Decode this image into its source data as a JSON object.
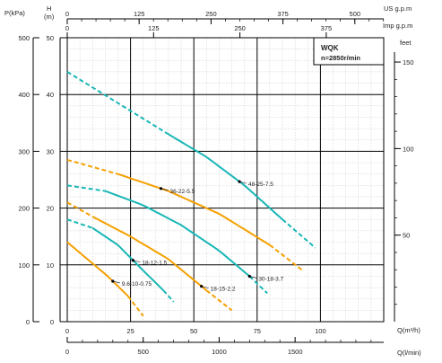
{
  "chart_data": {
    "type": "line",
    "title": "WQK",
    "subtitle": "n=2850r/min",
    "x_axis": {
      "label": "Q(m³/h)",
      "ticks": [
        0,
        25,
        50,
        75,
        100
      ],
      "range": [
        0,
        125
      ]
    },
    "x_axis_bottom": {
      "label": "Q(l/min)",
      "ticks": [
        "0",
        "500",
        "1000",
        "1500"
      ],
      "values_m3h": [
        0,
        30,
        60,
        90
      ]
    },
    "x_axis_top1": {
      "label": "US g.p.m",
      "ticks": [
        "0",
        "125",
        "250",
        "375",
        "500"
      ],
      "values_m3h": [
        0,
        28.4,
        56.8,
        85.2,
        113.6
      ]
    },
    "x_axis_top2": {
      "label": "Imp g.p.m",
      "ticks": [
        "0",
        "125",
        "250",
        "375"
      ],
      "values_m3h": [
        0,
        34.1,
        68.2,
        102.3
      ]
    },
    "y_axis_left_head": {
      "label": "H\n(m)",
      "ticks": [
        0,
        10,
        20,
        30,
        40,
        50
      ],
      "range": [
        0,
        50
      ]
    },
    "y_axis_left_pressure": {
      "label": "P(kPa)",
      "ticks": [
        "0",
        "100",
        "200",
        "300",
        "400",
        "500"
      ]
    },
    "y_axis_right": {
      "label": "feet",
      "ticks": [
        "50",
        "100",
        "150"
      ],
      "values_m": [
        15.24,
        30.48,
        45.72
      ]
    },
    "grid": true,
    "series": [
      {
        "name": "48-25-7.5",
        "color": "#19b6b6",
        "points": [
          [
            0,
            44
          ],
          [
            20,
            38.5
          ],
          [
            40,
            33
          ],
          [
            55,
            29
          ],
          [
            70,
            24
          ],
          [
            85,
            18
          ],
          [
            98,
            13
          ]
        ],
        "solid_range": [
          40,
          85
        ],
        "label_at": [
          68,
          25
        ]
      },
      {
        "name": "36-22-5.5",
        "color": "#f5a000",
        "points": [
          [
            0,
            28.5
          ],
          [
            20,
            26
          ],
          [
            40,
            23
          ],
          [
            60,
            19
          ],
          [
            80,
            13.5
          ],
          [
            93,
            9
          ]
        ],
        "solid_range": [
          20,
          80
        ],
        "label_at": [
          37,
          23
        ]
      },
      {
        "name": "30-18-3.7",
        "color": "#19b6b6",
        "points": [
          [
            0,
            24
          ],
          [
            15,
            23
          ],
          [
            30,
            20.5
          ],
          [
            45,
            17
          ],
          [
            60,
            12.5
          ],
          [
            72,
            8
          ],
          [
            79,
            5
          ]
        ],
        "solid_range": [
          15,
          72
        ],
        "label_at": [
          72,
          7
        ]
      },
      {
        "name": "18-15-2.2",
        "color": "#f5a000",
        "points": [
          [
            0,
            21
          ],
          [
            10,
            18.5
          ],
          [
            25,
            15
          ],
          [
            40,
            11
          ],
          [
            55,
            5.5
          ],
          [
            65,
            2
          ]
        ],
        "solid_range": [
          10,
          55
        ],
        "label_at": [
          53,
          7
        ]
      },
      {
        "name": "18-12-1.5",
        "color": "#19b6b6",
        "points": [
          [
            0,
            18
          ],
          [
            10,
            16.5
          ],
          [
            20,
            13.5
          ],
          [
            30,
            9
          ],
          [
            38,
            5.5
          ],
          [
            42,
            3.5
          ]
        ],
        "solid_range": [
          10,
          38
        ],
        "label_at": [
          26,
          8.5
        ]
      },
      {
        "name": "9.6-10-0.75",
        "color": "#f5a000",
        "points": [
          [
            0,
            14
          ],
          [
            8,
            11
          ],
          [
            16,
            8
          ],
          [
            24,
            4.5
          ],
          [
            30,
            1
          ]
        ],
        "solid_range": [
          0,
          24
        ],
        "label_at": [
          18,
          5.5
        ]
      }
    ]
  }
}
